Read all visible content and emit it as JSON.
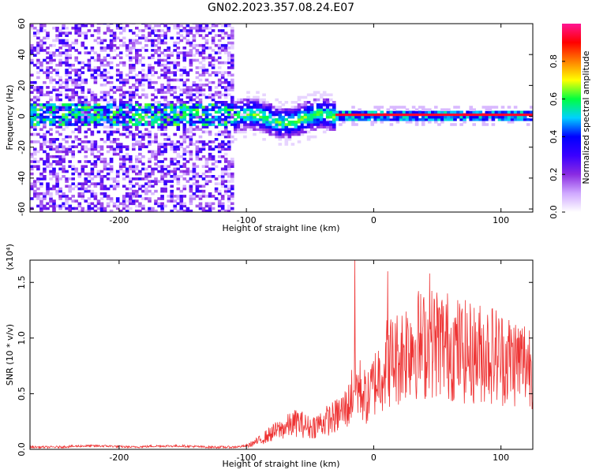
{
  "title": "GN02.2023.357.08.24.E07",
  "chart_data": [
    {
      "type": "heatmap",
      "xlabel": "Height of straight line (km)",
      "ylabel": "Frequency (Hz)",
      "xlim": [
        -270,
        125
      ],
      "ylim": [
        -62,
        60
      ],
      "xticks": [
        -200,
        -100,
        0,
        100
      ],
      "yticks": [
        -60,
        -40,
        -20,
        0,
        20,
        40,
        60
      ],
      "colorbar": {
        "label": "Normalized spectral amplitude",
        "range": [
          0,
          1
        ],
        "ticks": [
          "0.0",
          "0.2",
          "0.4",
          "0.6",
          "0.8"
        ],
        "colormap": [
          "#ffffff",
          "#cfa8ff",
          "#8a2be2",
          "#3a00ff",
          "#0000ff",
          "#00d0ff",
          "#00ff40",
          "#ffff00",
          "#ff8000",
          "#ff0000",
          "#ff1493"
        ]
      },
      "regions": [
        {
          "x_range": [
            -270,
            -110
          ],
          "description_values": {
            "background_amp": 0.1,
            "band_center_hz": 0,
            "band_amp": 0.35
          }
        },
        {
          "x_range": [
            -110,
            -30
          ],
          "description_values": {
            "band_center_hz": -2,
            "band_half_width_hz": 10,
            "band_amp": 0.45
          }
        },
        {
          "x_range": [
            -30,
            125
          ],
          "description_values": {
            "band_center_hz": 0,
            "band_half_width_hz": 3,
            "band_amp": 0.95
          }
        }
      ],
      "grid": false,
      "legend": "right"
    },
    {
      "type": "line",
      "xlabel": "Height of straight line (km)",
      "ylabel": "SNR (10 * v/v)",
      "yscale_label": "(x10⁴)",
      "xlim": [
        -270,
        125
      ],
      "ylim": [
        0,
        1.7
      ],
      "xticks": [
        -200,
        -100,
        0,
        100
      ],
      "yticks": [
        "0.0",
        "0.5",
        "1.0",
        "1.5"
      ],
      "color": "#ee3333",
      "series": [
        {
          "x": [
            -270,
            -250,
            -230,
            -210,
            -190,
            -170,
            -150,
            -130,
            -110,
            -100,
            -90,
            -80,
            -70,
            -60,
            -50,
            -40,
            -30,
            -20,
            -15,
            -10,
            -5,
            0,
            10,
            20,
            30,
            40,
            50,
            60,
            70,
            80,
            90,
            100,
            110,
            125
          ],
          "values": [
            0.02,
            0.02,
            0.03,
            0.03,
            0.02,
            0.03,
            0.03,
            0.02,
            0.02,
            0.03,
            0.08,
            0.15,
            0.2,
            0.25,
            0.2,
            0.25,
            0.3,
            0.4,
            0.6,
            0.55,
            0.45,
            0.6,
            0.8,
            0.85,
            1.0,
            0.95,
            1.0,
            0.95,
            0.9,
            0.88,
            0.9,
            0.85,
            0.82,
            0.8
          ]
        }
      ],
      "peaks": [
        {
          "x": -15,
          "y": 1.7
        },
        {
          "x": 11,
          "y": 1.6
        },
        {
          "x": 44,
          "y": 1.58
        }
      ],
      "grid": false
    }
  ]
}
